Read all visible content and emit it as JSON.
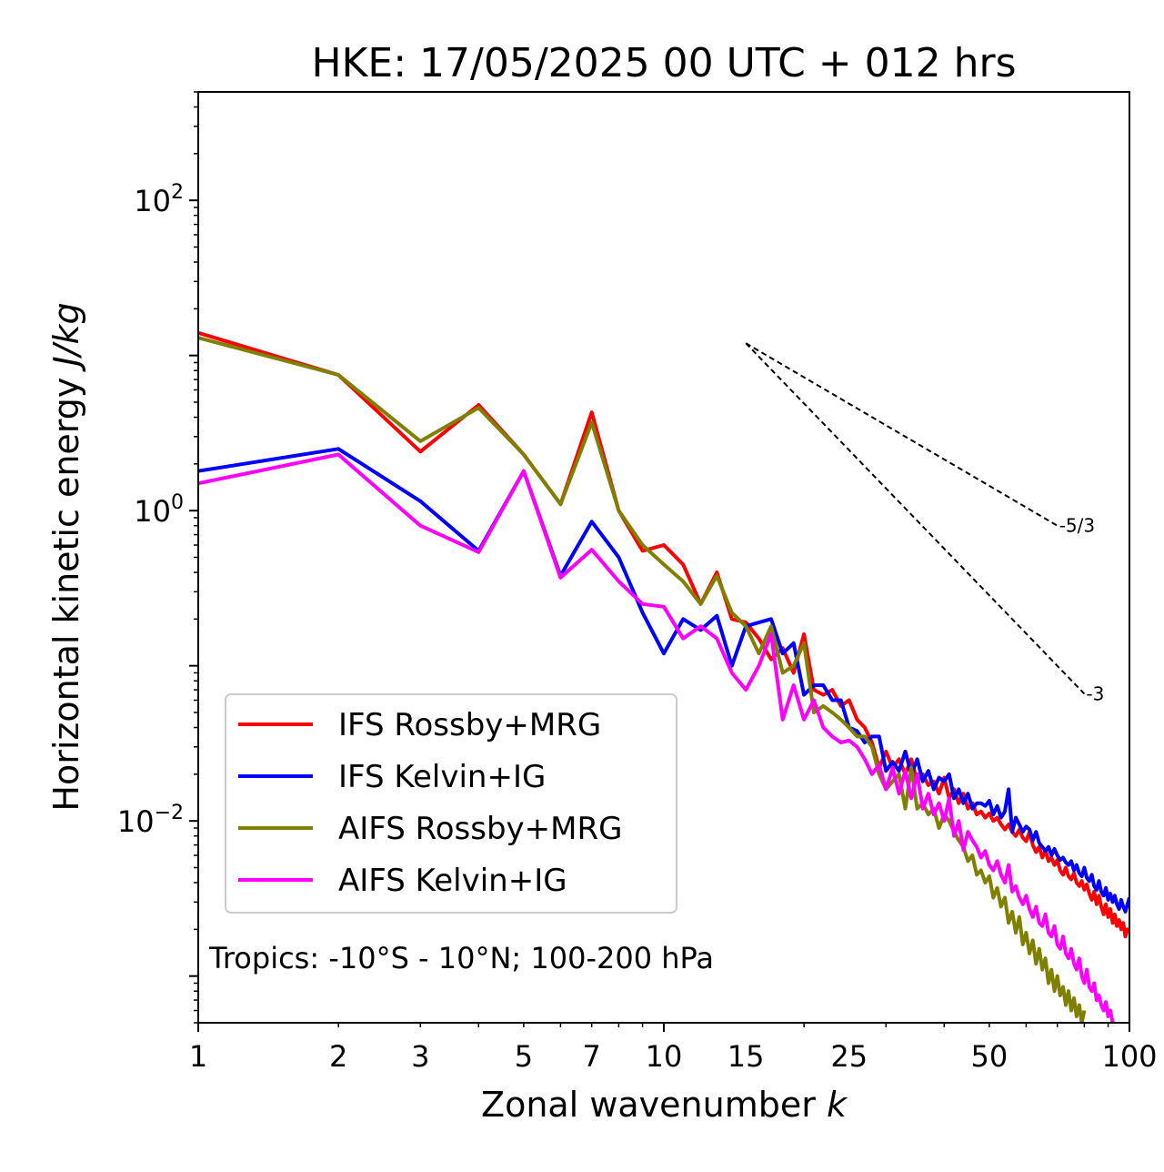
{
  "chart_data": {
    "type": "line",
    "title": "HKE: 17/05/2025 00 UTC + 012 hrs",
    "xlabel": "Zonal wavenumber",
    "xlabel_italic": "k",
    "ylabel": "Horizontal kinetic energy",
    "ylabel_italic": "J/kg",
    "x_scale": "log",
    "y_scale": "log",
    "xlim": [
      1,
      100
    ],
    "ylim": [
      0.0005,
      500
    ],
    "x_ticks": [
      1,
      2,
      3,
      5,
      7,
      10,
      15,
      25,
      50,
      100
    ],
    "x_tick_labels": [
      "1",
      "2",
      "3",
      "5",
      "7",
      "10",
      "15",
      "25",
      "50",
      "100"
    ],
    "y_ticks": [
      1,
      100,
      0.01
    ],
    "y_tick_labels": [
      {
        "base": "10",
        "exp": "0"
      },
      {
        "base": "10",
        "exp": "2"
      },
      {
        "base": "10",
        "exp": "−2"
      }
    ],
    "grid": false,
    "legend_position": "lower-left",
    "annotation": "Tropics: -10°S - 10°N; 100-200 hPa",
    "reference_slopes": [
      {
        "label": "-5/3",
        "x": [
          15,
          70
        ],
        "y": [
          12,
          0.8
        ]
      },
      {
        "label": "-3",
        "x": [
          15,
          80
        ],
        "y": [
          12,
          0.066
        ]
      }
    ],
    "series": [
      {
        "name": "IFS Rossby+MRG",
        "color": "#ff0000",
        "x": [
          1,
          2,
          3,
          4,
          5,
          6,
          7,
          8,
          9,
          10,
          11,
          12,
          13,
          14,
          15,
          16,
          17,
          18,
          19,
          20,
          21,
          22,
          23,
          24,
          25,
          26,
          27,
          28,
          29,
          30,
          31,
          32,
          33,
          34,
          35,
          36,
          37,
          38,
          39,
          40,
          41,
          42,
          43,
          44,
          45,
          46,
          47,
          48,
          49,
          50,
          51,
          52,
          53,
          54,
          55,
          56,
          57,
          58,
          59,
          60,
          61,
          62,
          63,
          64,
          65,
          66,
          67,
          68,
          69,
          70,
          71,
          72,
          73,
          74,
          75,
          76,
          77,
          78,
          79,
          80,
          81,
          82,
          83,
          84,
          85,
          86,
          87,
          88,
          89,
          90,
          91,
          92,
          93,
          94,
          95,
          96,
          97,
          98,
          99,
          100
        ],
        "y": [
          14,
          7.5,
          2.4,
          4.8,
          2.3,
          1.1,
          4.3,
          1.0,
          0.55,
          0.6,
          0.45,
          0.25,
          0.4,
          0.2,
          0.19,
          0.15,
          0.11,
          0.13,
          0.09,
          0.16,
          0.07,
          0.065,
          0.07,
          0.055,
          0.06,
          0.045,
          0.04,
          0.032,
          0.022,
          0.028,
          0.022,
          0.025,
          0.02,
          0.025,
          0.018,
          0.02,
          0.017,
          0.018,
          0.015,
          0.019,
          0.014,
          0.016,
          0.013,
          0.015,
          0.012,
          0.013,
          0.011,
          0.0115,
          0.0105,
          0.0112,
          0.01,
          0.0105,
          0.0095,
          0.0088,
          0.0095,
          0.0085,
          0.008,
          0.0088,
          0.0078,
          0.0074,
          0.0085,
          0.007,
          0.0063,
          0.0068,
          0.0058,
          0.0065,
          0.0055,
          0.0058,
          0.0052,
          0.0056,
          0.0048,
          0.0045,
          0.005,
          0.0044,
          0.0042,
          0.0046,
          0.004,
          0.0038,
          0.0041,
          0.0036,
          0.0039,
          0.0034,
          0.0031,
          0.0035,
          0.0029,
          0.0033,
          0.0028,
          0.0025,
          0.0029,
          0.0024,
          0.0027,
          0.0022,
          0.0025,
          0.0021,
          0.0023,
          0.002,
          0.0022,
          0.0018,
          0.002,
          0.0019
        ]
      },
      {
        "name": "IFS Kelvin+IG",
        "color": "#0000ff",
        "x": [
          1,
          2,
          3,
          4,
          5,
          6,
          7,
          8,
          9,
          10,
          11,
          12,
          13,
          14,
          15,
          16,
          17,
          18,
          19,
          20,
          21,
          22,
          23,
          24,
          25,
          26,
          27,
          28,
          29,
          30,
          31,
          32,
          33,
          34,
          35,
          36,
          37,
          38,
          39,
          40,
          41,
          42,
          43,
          44,
          45,
          46,
          47,
          48,
          49,
          50,
          51,
          52,
          53,
          54,
          55,
          56,
          57,
          58,
          59,
          60,
          61,
          62,
          63,
          64,
          65,
          66,
          67,
          68,
          69,
          70,
          71,
          72,
          73,
          74,
          75,
          76,
          77,
          78,
          79,
          80,
          81,
          82,
          83,
          84,
          85,
          86,
          87,
          88,
          89,
          90,
          91,
          92,
          93,
          94,
          95,
          96,
          97,
          98,
          99,
          100
        ],
        "y": [
          1.8,
          2.5,
          1.15,
          0.55,
          1.8,
          0.38,
          0.85,
          0.5,
          0.22,
          0.12,
          0.2,
          0.17,
          0.21,
          0.1,
          0.18,
          0.19,
          0.2,
          0.12,
          0.14,
          0.065,
          0.075,
          0.075,
          0.06,
          0.06,
          0.04,
          0.038,
          0.032,
          0.035,
          0.035,
          0.021,
          0.024,
          0.021,
          0.028,
          0.02,
          0.025,
          0.018,
          0.021,
          0.016,
          0.019,
          0.018,
          0.02,
          0.014,
          0.016,
          0.013,
          0.015,
          0.012,
          0.013,
          0.013,
          0.0125,
          0.0135,
          0.011,
          0.0125,
          0.0105,
          0.0115,
          0.016,
          0.0085,
          0.0105,
          0.0095,
          0.0085,
          0.0092,
          0.0088,
          0.0075,
          0.0085,
          0.0072,
          0.0068,
          0.0064,
          0.0068,
          0.006,
          0.0066,
          0.006,
          0.0056,
          0.0058,
          0.0054,
          0.0052,
          0.0055,
          0.0048,
          0.0052,
          0.0046,
          0.0044,
          0.005,
          0.0043,
          0.0041,
          0.0045,
          0.0038,
          0.0036,
          0.0041,
          0.0035,
          0.0033,
          0.0037,
          0.0031,
          0.0034,
          0.003,
          0.0033,
          0.0029,
          0.0027,
          0.0031,
          0.0028,
          0.0026,
          0.0029,
          0.0032
        ]
      },
      {
        "name": "AIFS Rossby+MRG",
        "color": "#808000",
        "x": [
          1,
          2,
          3,
          4,
          5,
          6,
          7,
          8,
          9,
          10,
          11,
          12,
          13,
          14,
          15,
          16,
          17,
          18,
          19,
          20,
          21,
          22,
          23,
          24,
          25,
          26,
          27,
          28,
          29,
          30,
          31,
          32,
          33,
          34,
          35,
          36,
          37,
          38,
          39,
          40,
          41,
          42,
          43,
          44,
          45,
          46,
          47,
          48,
          49,
          50,
          51,
          52,
          53,
          54,
          55,
          56,
          57,
          58,
          59,
          60,
          61,
          62,
          63,
          64,
          65,
          66,
          67,
          68,
          69,
          70,
          71,
          72,
          73,
          74,
          75,
          76,
          77,
          78,
          79,
          80
        ],
        "y": [
          13,
          7.5,
          2.8,
          4.6,
          2.3,
          1.1,
          3.7,
          1.0,
          0.6,
          0.45,
          0.35,
          0.25,
          0.38,
          0.22,
          0.18,
          0.12,
          0.18,
          0.09,
          0.1,
          0.14,
          0.05,
          0.055,
          0.05,
          0.045,
          0.04,
          0.035,
          0.035,
          0.03,
          0.02,
          0.016,
          0.018,
          0.02,
          0.012,
          0.022,
          0.012,
          0.013,
          0.011,
          0.012,
          0.009,
          0.011,
          0.01,
          0.0085,
          0.0075,
          0.0068,
          0.0055,
          0.006,
          0.0045,
          0.0048,
          0.004,
          0.0044,
          0.0032,
          0.0037,
          0.0028,
          0.0032,
          0.0022,
          0.0026,
          0.0019,
          0.0024,
          0.0016,
          0.0019,
          0.0014,
          0.0017,
          0.0012,
          0.0015,
          0.0011,
          0.0013,
          0.0009,
          0.0011,
          0.0008,
          0.001,
          0.00075,
          0.00085,
          0.00065,
          0.0008,
          0.0006,
          0.00072,
          0.00055,
          0.00065,
          0.0005,
          0.0006
        ]
      },
      {
        "name": "AIFS Kelvin+IG",
        "color": "#ff00ff",
        "x": [
          1,
          2,
          3,
          4,
          5,
          6,
          7,
          8,
          9,
          10,
          11,
          12,
          13,
          14,
          15,
          16,
          17,
          18,
          19,
          20,
          21,
          22,
          23,
          24,
          25,
          26,
          27,
          28,
          29,
          30,
          31,
          32,
          33,
          34,
          35,
          36,
          37,
          38,
          39,
          40,
          41,
          42,
          43,
          44,
          45,
          46,
          47,
          48,
          49,
          50,
          51,
          52,
          53,
          54,
          55,
          56,
          57,
          58,
          59,
          60,
          61,
          62,
          63,
          64,
          65,
          66,
          67,
          68,
          69,
          70,
          71,
          72,
          73,
          74,
          75,
          76,
          77,
          78,
          79,
          80,
          81,
          82,
          83,
          84,
          85,
          86,
          87,
          88,
          89,
          90,
          91,
          92
        ],
        "y": [
          1.5,
          2.3,
          0.8,
          0.54,
          1.8,
          0.37,
          0.56,
          0.35,
          0.25,
          0.24,
          0.15,
          0.18,
          0.15,
          0.09,
          0.07,
          0.1,
          0.16,
          0.045,
          0.075,
          0.045,
          0.06,
          0.04,
          0.035,
          0.032,
          0.033,
          0.03,
          0.025,
          0.02,
          0.023,
          0.016,
          0.022,
          0.015,
          0.021,
          0.014,
          0.02,
          0.012,
          0.015,
          0.011,
          0.013,
          0.01,
          0.014,
          0.008,
          0.01,
          0.0065,
          0.0085,
          0.0075,
          0.0068,
          0.0058,
          0.0064,
          0.0052,
          0.0048,
          0.0055,
          0.0045,
          0.004,
          0.0052,
          0.0035,
          0.0038,
          0.0032,
          0.0029,
          0.0033,
          0.0027,
          0.0024,
          0.0028,
          0.0022,
          0.0021,
          0.0025,
          0.0019,
          0.0018,
          0.0021,
          0.0016,
          0.0015,
          0.0018,
          0.0014,
          0.0013,
          0.0015,
          0.0012,
          0.0011,
          0.0013,
          0.001,
          0.0009,
          0.0011,
          0.00085,
          0.0008,
          0.0009,
          0.0007,
          0.00075,
          0.00065,
          0.0006,
          0.00068,
          0.00055,
          0.0006,
          0.0005
        ]
      }
    ]
  }
}
